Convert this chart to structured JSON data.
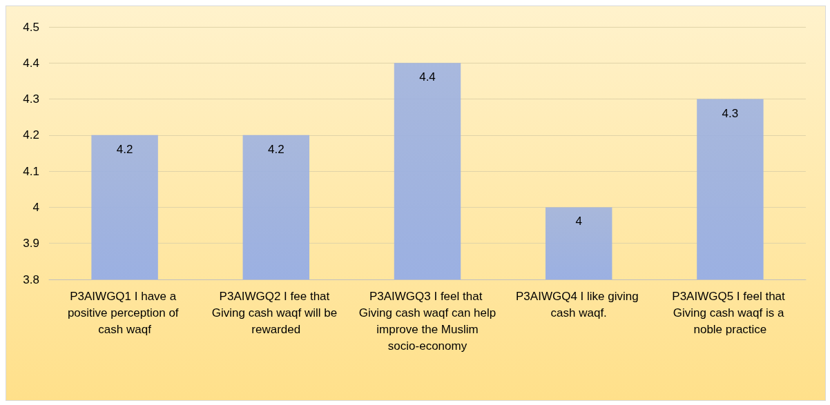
{
  "chart_data": {
    "type": "bar",
    "categories": [
      "P3AIWGQ1 I have a positive perception of cash waqf",
      "P3AIWGQ2 I fee that Giving cash waqf will be rewarded",
      "P3AIWGQ3 I feel that Giving cash waqf can help improve the Muslim socio-economy",
      "P3AIWGQ4 I like giving cash waqf.",
      "P3AIWGQ5 I feel that Giving cash waqf is a noble practice"
    ],
    "values": [
      4.2,
      4.2,
      4.4,
      4,
      4.3
    ],
    "color": "#9bb0e2",
    "ylim": [
      3.8,
      4.5
    ],
    "yticks": [
      3.8,
      3.9,
      4,
      4.1,
      4.2,
      4.3,
      4.4,
      4.5
    ],
    "grid": true,
    "data_labels": true
  }
}
